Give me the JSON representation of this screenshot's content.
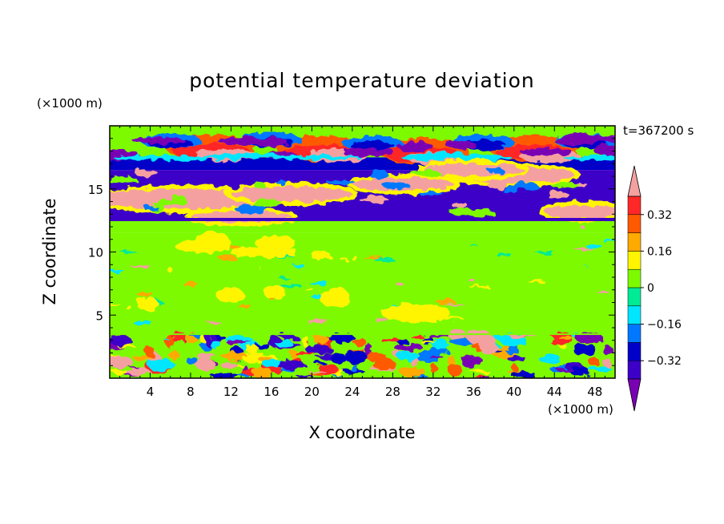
{
  "chart_data": {
    "type": "heatmap",
    "title": "potential temperature deviation",
    "xlabel": "X coordinate",
    "ylabel": "Z coordinate",
    "x_unit": "(×1000 m)",
    "y_unit": "(×1000 m)",
    "time_label": "t=367200 s",
    "xlim": [
      0,
      50
    ],
    "ylim": [
      0,
      20
    ],
    "x_ticks": [
      4,
      8,
      12,
      16,
      20,
      24,
      28,
      32,
      36,
      40,
      44,
      48
    ],
    "y_ticks": [
      5,
      10,
      15
    ],
    "colorbar": {
      "levels": [
        -0.4,
        -0.32,
        -0.24,
        -0.16,
        -0.08,
        0,
        0.08,
        0.16,
        0.24,
        0.32,
        0.4
      ],
      "tick_labels": [
        {
          "value": 0.32,
          "label": "0.32"
        },
        {
          "value": 0.16,
          "label": "0.16"
        },
        {
          "value": 0,
          "label": "0"
        },
        {
          "value": -0.16,
          "label": "−0.16"
        },
        {
          "value": -0.32,
          "label": "−0.32"
        }
      ],
      "colors_low_to_high": [
        "#7a00b4",
        "#3c00c8",
        "#0000c8",
        "#0078ff",
        "#00e6ff",
        "#00eb96",
        "#7dfa00",
        "#fff500",
        "#ffaa00",
        "#ff5a00",
        "#ff2828",
        "#f5a0a0"
      ],
      "extend": "both"
    },
    "field_bands": [
      {
        "z": [
          17.5,
          20
        ],
        "dominant_value": 0.04
      },
      {
        "z": [
          16.5,
          17.5
        ],
        "dominant_value": -0.3
      },
      {
        "z": [
          12.5,
          16.5
        ],
        "dominant_value": -0.38
      },
      {
        "z": [
          11.5,
          12.5
        ],
        "dominant_value": 0.04
      },
      {
        "z": [
          3.5,
          11.5
        ],
        "dominant_value": 0.02
      },
      {
        "z": [
          0,
          3.5
        ],
        "dominant_value": "turbulent mixed"
      }
    ]
  }
}
